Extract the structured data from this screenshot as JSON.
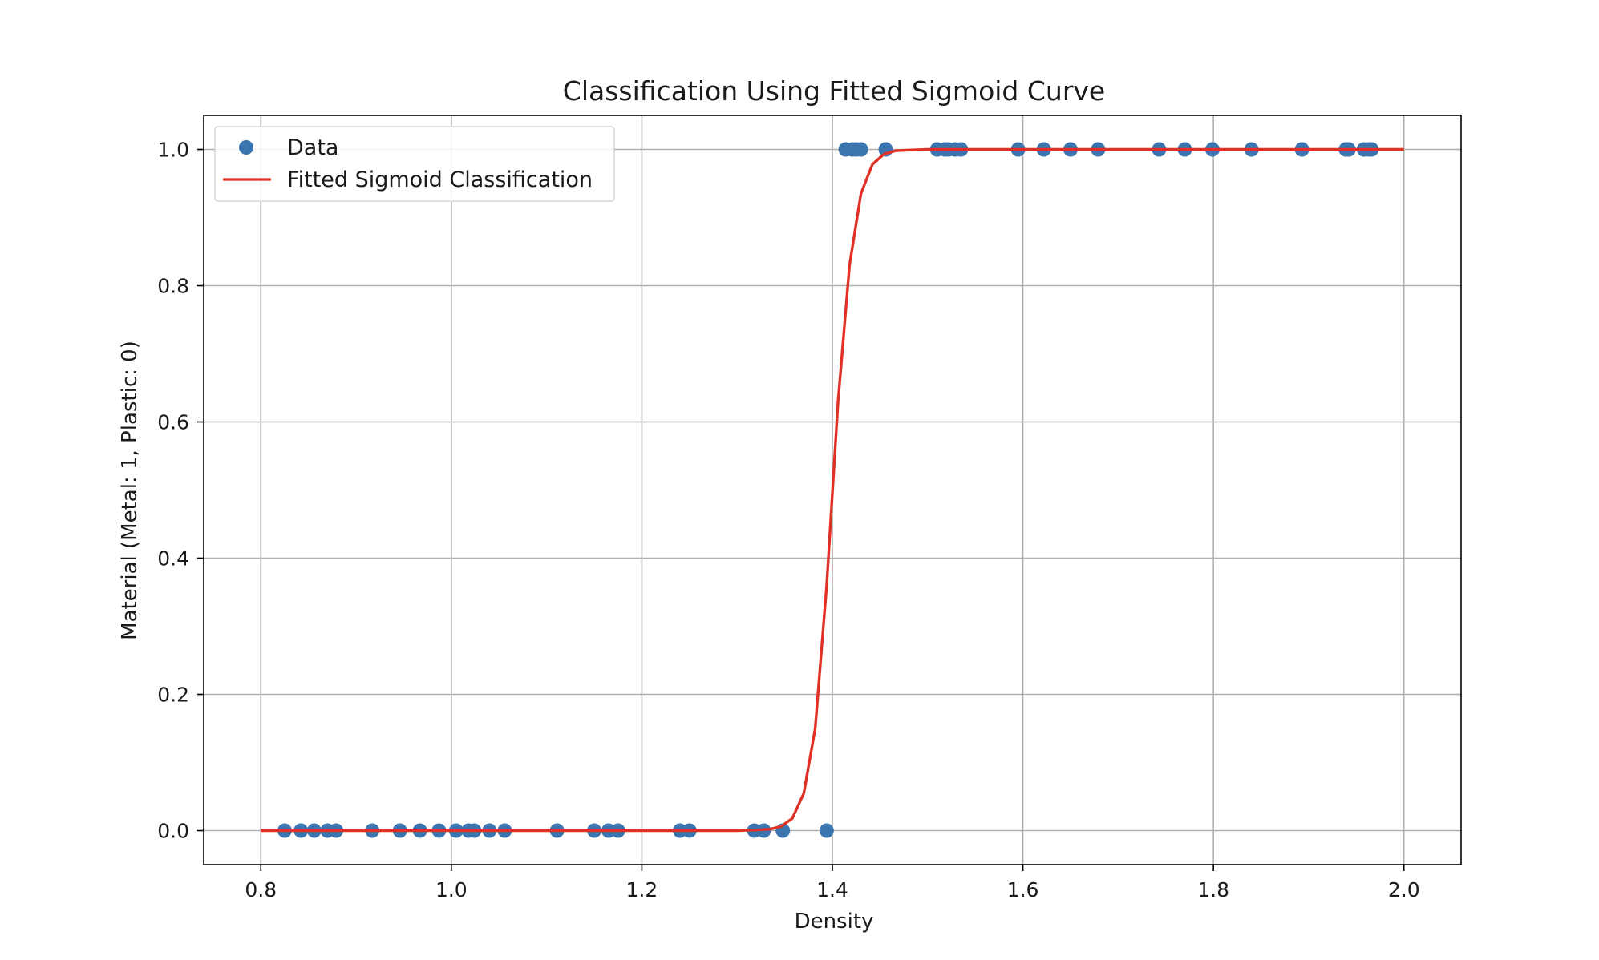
{
  "chart_data": {
    "type": "scatter",
    "title": "Classification Using Fitted Sigmoid Curve",
    "xlabel": "Density",
    "ylabel": "Material (Metal: 1, Plastic: 0)",
    "xlim": [
      0.74,
      2.06
    ],
    "ylim": [
      -0.05,
      1.05
    ],
    "x_ticks": [
      0.8,
      1.0,
      1.2,
      1.4,
      1.6,
      1.8,
      2.0
    ],
    "x_tick_labels": [
      "0.8",
      "1.0",
      "1.2",
      "1.4",
      "1.6",
      "1.8",
      "2.0"
    ],
    "y_ticks": [
      0.0,
      0.2,
      0.4,
      0.6,
      0.8,
      1.0
    ],
    "y_tick_labels": [
      "0.0",
      "0.2",
      "0.4",
      "0.6",
      "0.8",
      "1.0"
    ],
    "grid": true,
    "legend": {
      "position": "upper-left",
      "entries": [
        "Data",
        "Fitted Sigmoid Classification"
      ]
    },
    "colors": {
      "data": "#3b75af",
      "curve": "#e03127",
      "grid": "#b0b0b0",
      "axes": "#000000"
    },
    "series": [
      {
        "name": "Data",
        "kind": "scatter",
        "x": [
          0.825,
          0.842,
          0.856,
          0.87,
          0.879,
          0.917,
          0.946,
          0.967,
          0.987,
          1.005,
          1.018,
          1.024,
          1.04,
          1.056,
          1.111,
          1.15,
          1.165,
          1.175,
          1.24,
          1.25,
          1.318,
          1.328,
          1.348,
          1.394,
          1.414,
          1.421,
          1.425,
          1.43,
          1.456,
          1.51,
          1.518,
          1.522,
          1.529,
          1.535,
          1.595,
          1.622,
          1.65,
          1.679,
          1.743,
          1.77,
          1.799,
          1.84,
          1.893,
          1.939,
          1.942,
          1.958,
          1.963,
          1.966
        ],
        "y": [
          0,
          0,
          0,
          0,
          0,
          0,
          0,
          0,
          0,
          0,
          0,
          0,
          0,
          0,
          0,
          0,
          0,
          0,
          0,
          0,
          0,
          0,
          0,
          0,
          1,
          1,
          1,
          1,
          1,
          1,
          1,
          1,
          1,
          1,
          1,
          1,
          1,
          1,
          1,
          1,
          1,
          1,
          1,
          1,
          1,
          1,
          1,
          1
        ]
      },
      {
        "name": "Fitted Sigmoid Classification",
        "kind": "line",
        "x": [
          0.8,
          0.9,
          1.0,
          1.1,
          1.2,
          1.25,
          1.3,
          1.32,
          1.334,
          1.346,
          1.358,
          1.37,
          1.382,
          1.394,
          1.406,
          1.418,
          1.43,
          1.442,
          1.454,
          1.466,
          1.478,
          1.5,
          1.55,
          1.6,
          1.7,
          1.8,
          1.9,
          2.0
        ],
        "y": [
          0,
          0,
          0,
          0,
          0,
          0,
          0.0,
          0.001,
          0.002,
          0.006,
          0.018,
          0.055,
          0.15,
          0.36,
          0.63,
          0.83,
          0.935,
          0.978,
          0.993,
          0.998,
          0.999,
          1.0,
          1.0,
          1.0,
          1.0,
          1.0,
          1.0,
          1.0
        ]
      }
    ]
  }
}
